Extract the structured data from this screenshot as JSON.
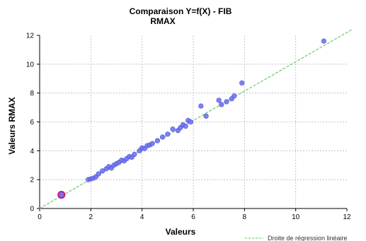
{
  "chart_data": {
    "type": "scatter",
    "title_line1": "Comparaison Y=f(X)  -  FIB",
    "title_line2": "RMAX",
    "xlabel": "Valeurs",
    "ylabel": "Valeurs RMAX",
    "xlim": [
      0,
      12
    ],
    "ylim": [
      0,
      12
    ],
    "xticks": [
      "0",
      "2",
      "4",
      "6",
      "8",
      "10",
      "12"
    ],
    "yticks": [
      "0",
      "2",
      "4",
      "6",
      "8",
      "10",
      "12"
    ],
    "grid": true,
    "legend_position": "bottom-right",
    "legend_label": "Droite de régression linéaire",
    "regression_color": "#7ccf7c",
    "point_color": "#6f73f5",
    "highlight_color": "#d0187a",
    "regression_line": {
      "x": [
        0,
        12.2
      ],
      "y": [
        0,
        12.4
      ]
    },
    "highlight_point": {
      "x": 0.85,
      "y": 0.95
    },
    "points": [
      [
        1.9,
        2.0
      ],
      [
        2.0,
        2.05
      ],
      [
        2.1,
        2.1
      ],
      [
        2.2,
        2.2
      ],
      [
        2.3,
        2.4
      ],
      [
        2.45,
        2.6
      ],
      [
        2.6,
        2.75
      ],
      [
        2.7,
        2.9
      ],
      [
        2.8,
        2.8
      ],
      [
        2.9,
        3.0
      ],
      [
        3.0,
        3.1
      ],
      [
        3.1,
        3.2
      ],
      [
        3.2,
        3.35
      ],
      [
        3.3,
        3.3
      ],
      [
        3.4,
        3.45
      ],
      [
        3.5,
        3.6
      ],
      [
        3.6,
        3.55
      ],
      [
        3.7,
        3.75
      ],
      [
        3.9,
        4.0
      ],
      [
        4.0,
        4.2
      ],
      [
        4.1,
        4.15
      ],
      [
        4.2,
        4.35
      ],
      [
        4.3,
        4.4
      ],
      [
        4.4,
        4.5
      ],
      [
        4.6,
        4.7
      ],
      [
        4.8,
        4.95
      ],
      [
        5.0,
        5.15
      ],
      [
        5.2,
        5.5
      ],
      [
        5.4,
        5.4
      ],
      [
        5.5,
        5.6
      ],
      [
        5.6,
        5.8
      ],
      [
        5.7,
        5.7
      ],
      [
        5.8,
        6.1
      ],
      [
        5.9,
        6.0
      ],
      [
        6.3,
        7.1
      ],
      [
        6.5,
        6.4
      ],
      [
        7.0,
        7.5
      ],
      [
        7.1,
        7.2
      ],
      [
        7.3,
        7.4
      ],
      [
        7.5,
        7.6
      ],
      [
        7.6,
        7.8
      ],
      [
        7.9,
        8.7
      ],
      [
        11.1,
        11.6
      ]
    ]
  }
}
